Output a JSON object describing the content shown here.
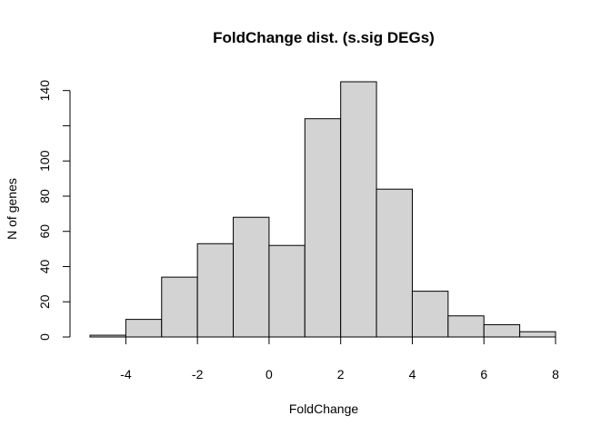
{
  "chart_data": {
    "type": "bar",
    "title": "FoldChange dist. (s.sig DEGs)",
    "xlabel": "FoldChange",
    "ylabel": "N of genes",
    "bins": [
      {
        "start": -5,
        "end": -4,
        "count": 1
      },
      {
        "start": -4,
        "end": -3,
        "count": 10
      },
      {
        "start": -3,
        "end": -2,
        "count": 34
      },
      {
        "start": -2,
        "end": -1,
        "count": 53
      },
      {
        "start": -1,
        "end": 0,
        "count": 68
      },
      {
        "start": 0,
        "end": 1,
        "count": 52
      },
      {
        "start": 1,
        "end": 2,
        "count": 124
      },
      {
        "start": 2,
        "end": 3,
        "count": 145
      },
      {
        "start": 3,
        "end": 4,
        "count": 84
      },
      {
        "start": 4,
        "end": 5,
        "count": 26
      },
      {
        "start": 5,
        "end": 6,
        "count": 12
      },
      {
        "start": 6,
        "end": 7,
        "count": 7
      },
      {
        "start": 7,
        "end": 8,
        "count": 3
      }
    ],
    "xlim": [
      -5,
      8
    ],
    "ylim": [
      0,
      145
    ],
    "x_ticks": [
      -4,
      -2,
      0,
      2,
      4,
      6,
      8
    ],
    "y_ticks": [
      0,
      20,
      40,
      60,
      80,
      100,
      120,
      140
    ],
    "y_tick_labels": [
      "0",
      "20",
      "40",
      "60",
      "80",
      "100",
      "",
      "140"
    ],
    "grid": false,
    "bar_fill": "#d3d3d3",
    "bar_stroke": "#000000"
  }
}
